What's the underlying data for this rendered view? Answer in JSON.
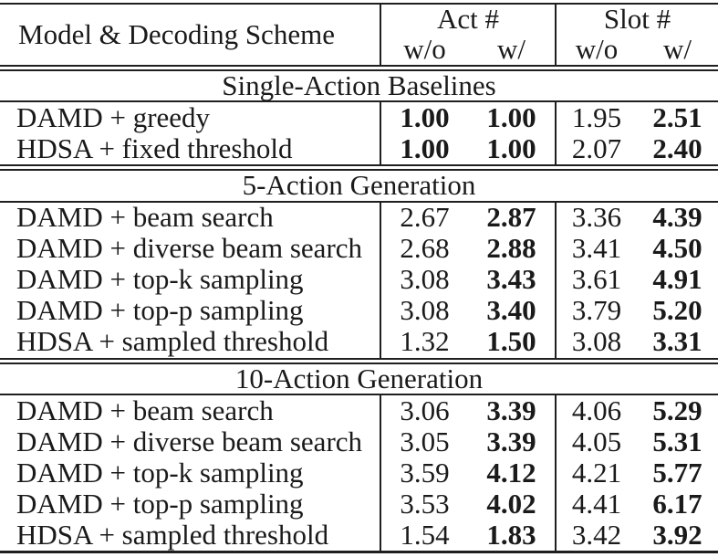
{
  "table": {
    "header": {
      "model_column": "Model & Decoding Scheme",
      "groups": [
        {
          "label": "Act #",
          "subcolumns": [
            "w/o",
            "w/"
          ]
        },
        {
          "label": "Slot #",
          "subcolumns": [
            "w/o",
            "w/"
          ]
        }
      ]
    },
    "sections": [
      {
        "title": "Single-Action Baselines",
        "rows": [
          {
            "model": "DAMD + greedy",
            "values": [
              "1.00",
              "1.00",
              "1.95",
              "2.51"
            ],
            "bold": [
              true,
              true,
              false,
              true
            ]
          },
          {
            "model": "HDSA + fixed threshold",
            "values": [
              "1.00",
              "1.00",
              "2.07",
              "2.40"
            ],
            "bold": [
              true,
              true,
              false,
              true
            ]
          }
        ]
      },
      {
        "title": "5-Action Generation",
        "rows": [
          {
            "model": "DAMD + beam search",
            "values": [
              "2.67",
              "2.87",
              "3.36",
              "4.39"
            ],
            "bold": [
              false,
              true,
              false,
              true
            ]
          },
          {
            "model": "DAMD + diverse beam search",
            "values": [
              "2.68",
              "2.88",
              "3.41",
              "4.50"
            ],
            "bold": [
              false,
              true,
              false,
              true
            ]
          },
          {
            "model": "DAMD + top-k sampling",
            "values": [
              "3.08",
              "3.43",
              "3.61",
              "4.91"
            ],
            "bold": [
              false,
              true,
              false,
              true
            ]
          },
          {
            "model": "DAMD + top-p sampling",
            "values": [
              "3.08",
              "3.40",
              "3.79",
              "5.20"
            ],
            "bold": [
              false,
              true,
              false,
              true
            ]
          },
          {
            "model": "HDSA + sampled threshold",
            "values": [
              "1.32",
              "1.50",
              "3.08",
              "3.31"
            ],
            "bold": [
              false,
              true,
              false,
              true
            ]
          }
        ]
      },
      {
        "title": "10-Action Generation",
        "rows": [
          {
            "model": "DAMD + beam search",
            "values": [
              "3.06",
              "3.39",
              "4.06",
              "5.29"
            ],
            "bold": [
              false,
              true,
              false,
              true
            ]
          },
          {
            "model": "DAMD + diverse beam search",
            "values": [
              "3.05",
              "3.39",
              "4.05",
              "5.31"
            ],
            "bold": [
              false,
              true,
              false,
              true
            ]
          },
          {
            "model": "DAMD + top-k sampling",
            "values": [
              "3.59",
              "4.12",
              "4.21",
              "5.77"
            ],
            "bold": [
              false,
              true,
              false,
              true
            ]
          },
          {
            "model": "DAMD + top-p sampling",
            "values": [
              "3.53",
              "4.02",
              "4.41",
              "6.17"
            ],
            "bold": [
              false,
              true,
              false,
              true
            ]
          },
          {
            "model": "HDSA + sampled threshold",
            "values": [
              "1.54",
              "1.83",
              "3.42",
              "3.92"
            ],
            "bold": [
              false,
              true,
              false,
              true
            ]
          }
        ]
      }
    ],
    "colors": {
      "text": "#1a1a1a",
      "rule": "#1f1f1f",
      "background": "#ffffff"
    }
  }
}
